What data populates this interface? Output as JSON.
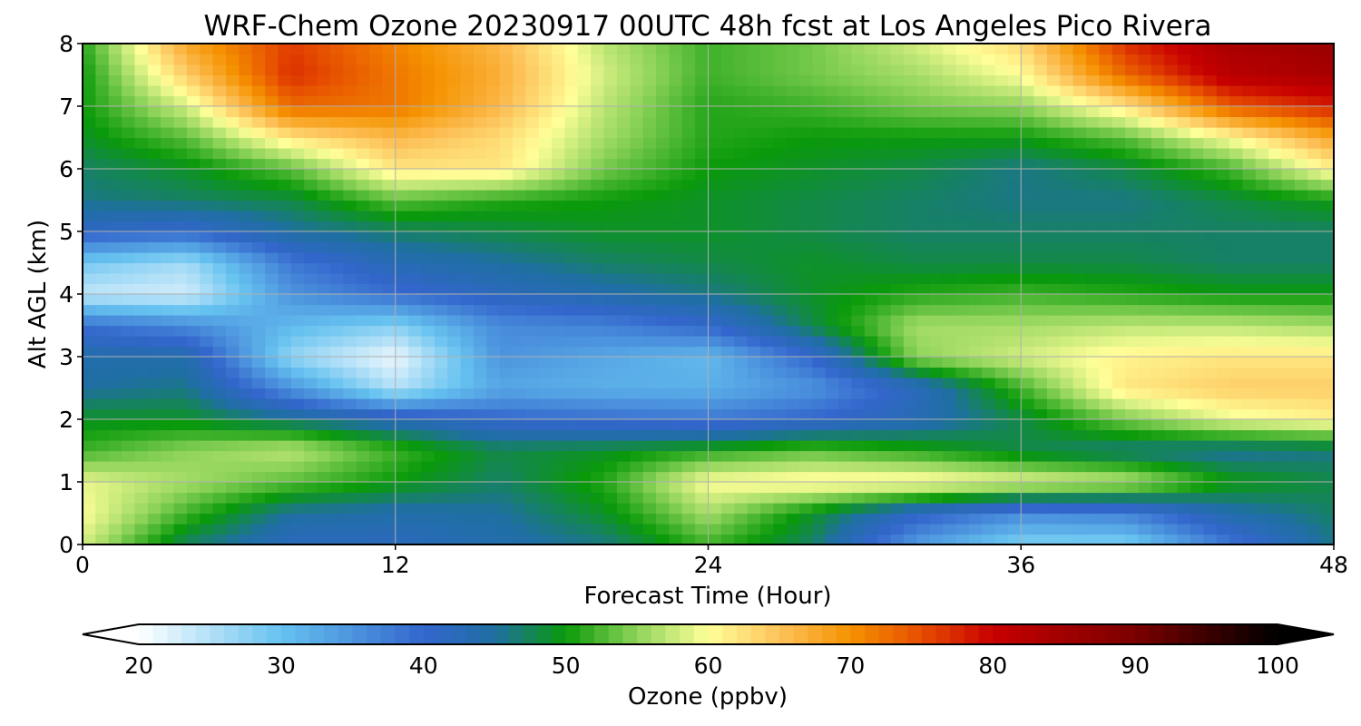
{
  "chart_data": {
    "type": "heatmap",
    "title": "WRF-Chem Ozone  20230917 00UTC 48h fcst at Los Angeles Pico Rivera",
    "xlabel": "Forecast Time (Hour)",
    "ylabel": "Alt AGL (km)",
    "xlim": [
      0,
      48
    ],
    "ylim": [
      0,
      8
    ],
    "xticks": [
      0,
      12,
      24,
      36,
      48
    ],
    "yticks": [
      0,
      1,
      2,
      3,
      4,
      5,
      6,
      7,
      8
    ],
    "grid": true,
    "x": [
      0,
      4,
      8,
      12,
      16,
      20,
      24,
      28,
      32,
      36,
      40,
      44,
      48
    ],
    "y": [
      0,
      0.5,
      1,
      1.5,
      2,
      2.5,
      3,
      3.5,
      4,
      4.5,
      5,
      5.5,
      6,
      6.5,
      7,
      7.5,
      8
    ],
    "values_note": "rows = altitude levels (y), columns = forecast hours (x), ozone in ppbv",
    "values": [
      [
        58,
        47,
        42,
        42,
        44,
        46,
        52,
        47,
        34,
        28,
        28,
        38,
        46
      ],
      [
        60,
        52,
        45,
        44,
        45,
        49,
        56,
        49,
        41,
        36,
        37,
        44,
        47
      ],
      [
        59,
        56,
        53,
        50,
        47,
        51,
        60,
        61,
        61,
        59,
        57,
        50,
        48
      ],
      [
        52,
        55,
        57,
        52,
        48,
        49,
        51,
        53,
        51,
        48,
        46,
        45,
        46
      ],
      [
        49,
        49,
        46,
        43,
        40,
        39,
        38,
        40,
        43,
        48,
        54,
        59,
        61
      ],
      [
        45,
        46,
        35,
        25,
        33,
        32,
        32,
        35,
        42,
        52,
        62,
        64,
        64
      ],
      [
        44,
        44,
        27,
        21,
        35,
        33,
        31,
        40,
        55,
        58,
        61,
        62,
        62
      ],
      [
        39,
        36,
        31,
        28,
        36,
        37,
        40,
        48,
        56,
        56,
        57,
        57,
        56
      ],
      [
        24,
        23,
        35,
        39,
        42,
        44,
        46,
        49,
        51,
        52,
        51,
        50,
        50
      ],
      [
        29,
        26,
        38,
        43,
        45,
        47,
        48,
        49,
        48,
        48,
        48,
        47,
        47
      ],
      [
        41,
        40,
        45,
        47,
        48,
        49,
        49,
        48,
        47,
        47,
        47,
        47,
        47
      ],
      [
        46,
        47,
        48,
        53,
        51,
        50,
        49,
        48,
        47,
        46,
        46,
        48,
        50
      ],
      [
        47,
        49,
        53,
        62,
        62,
        54,
        50,
        49,
        48,
        46,
        48,
        52,
        61
      ],
      [
        49,
        53,
        62,
        66,
        63,
        56,
        51,
        50,
        50,
        50,
        53,
        60,
        68
      ],
      [
        50,
        58,
        73,
        72,
        66,
        57,
        51,
        52,
        54,
        55,
        62,
        74,
        78
      ],
      [
        50,
        64,
        77,
        72,
        67,
        58,
        52,
        54,
        56,
        60,
        73,
        82,
        84
      ],
      [
        51,
        68,
        76,
        71,
        66,
        57,
        52,
        54,
        58,
        63,
        77,
        84,
        86
      ]
    ],
    "colorbar": {
      "label": "Ozone  (ppbv)",
      "min": 20,
      "max": 100,
      "extend": "both",
      "ticks": [
        20,
        30,
        40,
        50,
        60,
        70,
        80,
        90,
        100
      ],
      "stops": [
        {
          "v": 20,
          "c": "#ffffff"
        },
        {
          "v": 30,
          "c": "#66c2f0"
        },
        {
          "v": 40,
          "c": "#3366cc"
        },
        {
          "v": 45,
          "c": "#1f6fa3"
        },
        {
          "v": 50,
          "c": "#0a9a0a"
        },
        {
          "v": 55,
          "c": "#8fd45a"
        },
        {
          "v": 60,
          "c": "#ffff99"
        },
        {
          "v": 65,
          "c": "#fdc25a"
        },
        {
          "v": 70,
          "c": "#f59200"
        },
        {
          "v": 75,
          "c": "#e64d00"
        },
        {
          "v": 80,
          "c": "#c80000"
        },
        {
          "v": 90,
          "c": "#7a0000"
        },
        {
          "v": 100,
          "c": "#000000"
        }
      ]
    }
  }
}
